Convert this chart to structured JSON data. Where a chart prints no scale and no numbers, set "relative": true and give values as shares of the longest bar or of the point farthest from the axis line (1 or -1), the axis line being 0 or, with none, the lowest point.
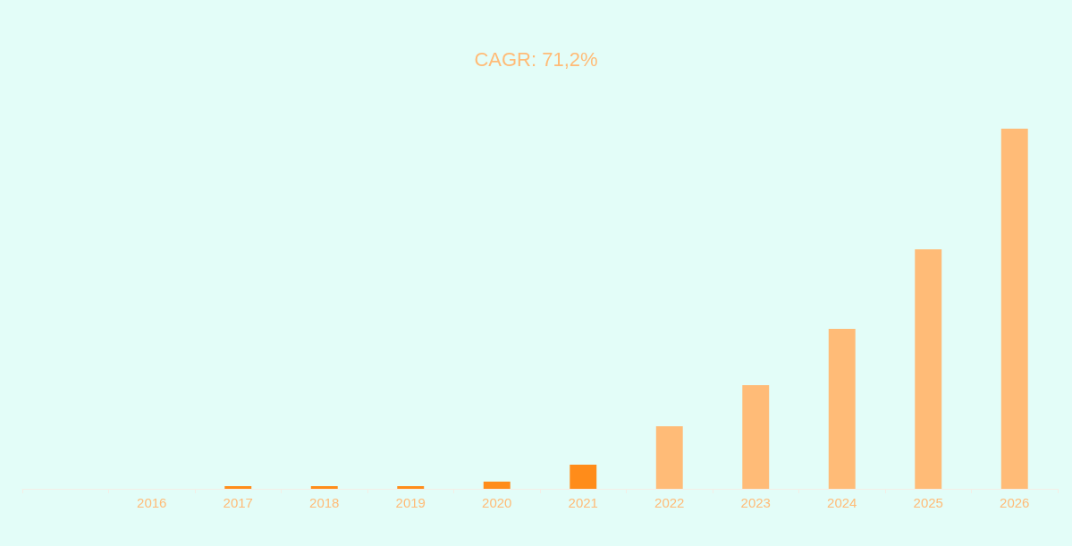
{
  "chart_data": {
    "type": "bar",
    "title": "CAGR: 71,2%",
    "relative": true,
    "categories": [
      null,
      "2016",
      "2017",
      "2018",
      "2019",
      "2020",
      "2021",
      "2022",
      "2023",
      "2024",
      "2025",
      "2026"
    ],
    "values": [
      null,
      0,
      0.0074,
      0.0074,
      0.0074,
      0.02,
      0.067,
      0.174,
      0.288,
      0.444,
      0.665,
      1
    ],
    "colors": [
      "#ff8c1a",
      "#ff8c1a",
      "#ff8c1a",
      "#ff8c1a",
      "#ff8c1a",
      "#ff8c1a",
      "#ff8c1a",
      "#ffbb77",
      "#ffbb77",
      "#ffbb77",
      "#ffbb77",
      "#ffbb77"
    ],
    "data_labels": false
  }
}
